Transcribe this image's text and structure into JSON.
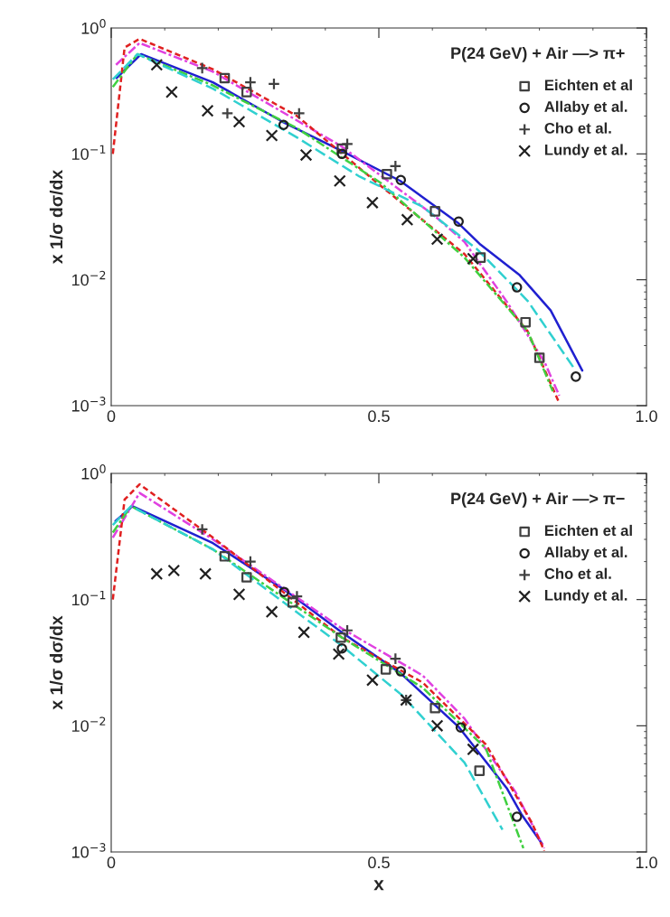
{
  "chart_data": [
    {
      "type": "line",
      "ylabel": "x 1/σ dσ/dx",
      "annotations": [
        "P(24 GeV) + Air —> π+"
      ],
      "log": "y",
      "xlim": [
        0,
        1
      ],
      "ylim": [
        0.001,
        1
      ],
      "xticks": [
        0,
        0.5,
        {
          "value": 1,
          "label": "1.0"
        }
      ],
      "yticks": [
        {
          "value": 0.001,
          "label": "10$^{−3}$"
        },
        {
          "value": 0.01,
          "label": "10$^{−2}$"
        },
        {
          "value": 0.1,
          "label": "10$^{−1}$"
        },
        {
          "value": 1,
          "label": "10$^{0}$"
        }
      ],
      "grid": false,
      "legend": "top right",
      "series": [
        {
          "type": "line",
          "color": "#2020d0",
          "line_style": "solid",
          "x": [
            0.01,
            0.056,
            0.19,
            0.32,
            0.43,
            0.54,
            0.649,
            0.69,
            0.762,
            0.821,
            0.88
          ],
          "values": [
            0.4,
            0.62,
            0.37,
            0.18,
            0.106,
            0.061,
            0.028,
            0.019,
            0.011,
            0.0057,
            0.0019
          ]
        },
        {
          "type": "line",
          "color": "#e040e0",
          "line_style": "dashdot",
          "x": [
            0.009,
            0.053,
            0.19,
            0.43,
            0.605,
            0.66,
            0.739,
            0.81,
            0.837
          ],
          "values": [
            0.51,
            0.76,
            0.45,
            0.115,
            0.032,
            0.02,
            0.0067,
            0.0022,
            0.0012
          ]
        },
        {
          "type": "line",
          "color": "#e02020",
          "line_style": "dotted",
          "x": [
            0.003,
            0.025,
            0.053,
            0.19,
            0.347,
            0.503,
            0.66,
            0.778,
            0.837
          ],
          "values": [
            0.1,
            0.7,
            0.82,
            0.47,
            0.2,
            0.056,
            0.016,
            0.0039,
            0.00105
          ]
        },
        {
          "type": "line",
          "color": "#40d040",
          "line_style": "dashdot",
          "x": [
            0.003,
            0.049,
            0.19,
            0.347,
            0.503,
            0.66,
            0.778,
            0.825
          ],
          "values": [
            0.34,
            0.62,
            0.35,
            0.16,
            0.059,
            0.015,
            0.0039,
            0.0013
          ]
        },
        {
          "type": "line",
          "color": "#30d0d0",
          "line_style": "dashed",
          "x": [
            0.003,
            0.049,
            0.19,
            0.347,
            0.464,
            0.582,
            0.684,
            0.778,
            0.864
          ],
          "values": [
            0.39,
            0.62,
            0.33,
            0.135,
            0.066,
            0.038,
            0.0174,
            0.0068,
            0.002
          ]
        },
        {
          "type": "scatter",
          "name": "Eichten et al",
          "color": "#404040",
          "marker": "square",
          "x": [
            0.212,
            0.253,
            0.431,
            0.515,
            0.605,
            0.69,
            0.774,
            0.8
          ],
          "values": [
            0.4,
            0.31,
            0.11,
            0.069,
            0.035,
            0.015,
            0.0046,
            0.0024
          ]
        },
        {
          "type": "scatter",
          "name": "Allaby et al.",
          "color": "#202020",
          "marker": "circle",
          "x": [
            0.322,
            0.431,
            0.541,
            0.649,
            0.758,
            0.868
          ],
          "values": [
            0.17,
            0.1,
            0.062,
            0.029,
            0.0087,
            0.0017
          ]
        },
        {
          "type": "scatter",
          "name": "Cho et al.",
          "color": "#404040",
          "marker": "plus",
          "x": [
            0.17,
            0.26,
            0.304,
            0.217,
            0.351,
            0.441,
            0.531
          ],
          "values": [
            0.48,
            0.37,
            0.36,
            0.21,
            0.21,
            0.12,
            0.08
          ]
        },
        {
          "type": "scatter",
          "name": "Lundy et al.",
          "color": "#202020",
          "marker": "cross",
          "x": [
            0.085,
            0.113,
            0.18,
            0.239,
            0.3,
            0.364,
            0.427,
            0.488,
            0.553,
            0.609,
            0.676
          ],
          "values": [
            0.51,
            0.31,
            0.22,
            0.18,
            0.14,
            0.098,
            0.061,
            0.041,
            0.03,
            0.021,
            0.0147
          ]
        }
      ]
    },
    {
      "type": "line",
      "xlabel": "x",
      "ylabel": "x 1/σ dσ/dx",
      "annotations": [
        "P(24 GeV) + Air —> π−"
      ],
      "log": "y",
      "xlim": [
        0,
        1
      ],
      "ylim": [
        0.001,
        1
      ],
      "xticks": [
        0,
        0.5,
        {
          "value": 1,
          "label": "1.0"
        }
      ],
      "yticks": [
        {
          "value": 0.001,
          "label": "10$^{−3}$"
        },
        {
          "value": 0.01,
          "label": "10$^{−2}$"
        },
        {
          "value": 0.1,
          "label": "10$^{−1}$"
        },
        {
          "value": 1,
          "label": "10$^{0}$"
        }
      ],
      "grid": false,
      "legend": "top right",
      "series": [
        {
          "type": "line",
          "color": "#2020d0",
          "line_style": "solid",
          "x": [
            0.008,
            0.04,
            0.19,
            0.323,
            0.431,
            0.541,
            0.649,
            0.739,
            0.766,
            0.805
          ],
          "values": [
            0.42,
            0.55,
            0.28,
            0.12,
            0.055,
            0.026,
            0.0098,
            0.0032,
            0.002,
            0.00116
          ]
        },
        {
          "type": "line",
          "color": "#e040e0",
          "line_style": "dashdot",
          "x": [
            0.003,
            0.053,
            0.19,
            0.431,
            0.582,
            0.66,
            0.755,
            0.809
          ],
          "values": [
            0.31,
            0.7,
            0.3,
            0.059,
            0.025,
            0.0114,
            0.003,
            0.00107
          ]
        },
        {
          "type": "line",
          "color": "#e02020",
          "line_style": "dotted",
          "x": [
            0.003,
            0.025,
            0.053,
            0.19,
            0.431,
            0.582,
            0.7,
            0.786,
            0.809
          ],
          "values": [
            0.1,
            0.62,
            0.82,
            0.31,
            0.05,
            0.022,
            0.0071,
            0.0017,
            0.00102
          ]
        },
        {
          "type": "line",
          "color": "#40d040",
          "line_style": "dashdot",
          "x": [
            0.003,
            0.037,
            0.19,
            0.431,
            0.582,
            0.7,
            0.77
          ],
          "values": [
            0.34,
            0.55,
            0.25,
            0.05,
            0.02,
            0.0066,
            0.00107
          ]
        },
        {
          "type": "line",
          "color": "#30d0d0",
          "line_style": "dashed",
          "x": [
            0.003,
            0.037,
            0.19,
            0.431,
            0.543,
            0.66,
            0.731
          ],
          "values": [
            0.39,
            0.55,
            0.25,
            0.043,
            0.0175,
            0.0051,
            0.0015
          ]
        },
        {
          "type": "scatter",
          "name": "Eichten et al",
          "color": "#404040",
          "marker": "square",
          "x": [
            0.212,
            0.253,
            0.339,
            0.429,
            0.513,
            0.605,
            0.688
          ],
          "values": [
            0.22,
            0.15,
            0.095,
            0.05,
            0.028,
            0.0138,
            0.0044
          ]
        },
        {
          "type": "scatter",
          "name": "Allaby et al.",
          "color": "#202020",
          "marker": "circle",
          "x": [
            0.323,
            0.431,
            0.541,
            0.653,
            0.758
          ],
          "values": [
            0.115,
            0.041,
            0.027,
            0.0097,
            0.0019
          ]
        },
        {
          "type": "scatter",
          "name": "Cho et al.",
          "color": "#404040",
          "marker": "plus",
          "x": [
            0.17,
            0.26,
            0.347,
            0.441,
            0.531,
            0.551
          ],
          "values": [
            0.36,
            0.2,
            0.106,
            0.057,
            0.034,
            0.016
          ]
        },
        {
          "type": "scatter",
          "name": "Lundy et al.",
          "color": "#202020",
          "marker": "cross",
          "x": [
            0.085,
            0.117,
            0.176,
            0.239,
            0.3,
            0.36,
            0.425,
            0.488,
            0.551,
            0.609,
            0.676
          ],
          "values": [
            0.16,
            0.17,
            0.16,
            0.11,
            0.08,
            0.055,
            0.037,
            0.023,
            0.016,
            0.01,
            0.0065
          ]
        }
      ]
    }
  ]
}
